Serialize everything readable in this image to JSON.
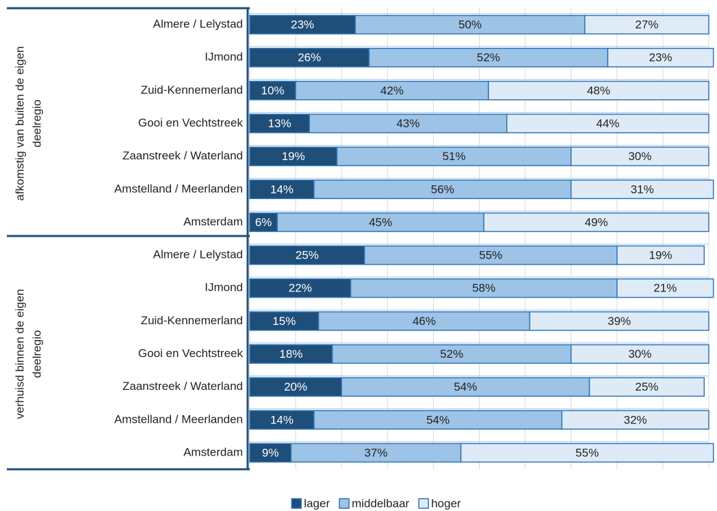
{
  "chart_data": {
    "type": "bar",
    "orientation": "horizontal",
    "stacked": true,
    "groups": [
      {
        "label": [
          "afkomstig  van buiten de eigen",
          "deelregio"
        ],
        "categories": [
          "Almere / Lelystad",
          "IJmond",
          "Zuid-Kennemerland",
          "Gooi en Vechtstreek",
          "Zaanstreek / Waterland",
          "Amstelland / Meerlanden",
          "Amsterdam"
        ]
      },
      {
        "label": [
          "verhuisd binnen de eigen",
          "deelregio"
        ],
        "categories": [
          "Almere / Lelystad",
          "IJmond",
          "Zuid-Kennemerland",
          "Gooi en Vechtstreek",
          "Zaanstreek / Waterland",
          "Amstelland / Meerlanden",
          "Amsterdam"
        ]
      }
    ],
    "series": [
      {
        "name": "lager",
        "color": "#1f4e79",
        "label_color": "#ffffff",
        "values": [
          23,
          26,
          10,
          13,
          19,
          14,
          6,
          25,
          22,
          15,
          18,
          20,
          14,
          9
        ],
        "value_labels": [
          "23%",
          "26%",
          "10%",
          "13%",
          "19%",
          "14%",
          "6%",
          "25%",
          "22%",
          "15%",
          "18%",
          "20%",
          "14%",
          "9%"
        ]
      },
      {
        "name": "middelbaar",
        "color": "#9dc3e6",
        "label_color": "#222222",
        "values": [
          50,
          52,
          42,
          43,
          51,
          56,
          45,
          55,
          58,
          46,
          52,
          54,
          54,
          37
        ],
        "value_labels": [
          "50%",
          "52%",
          "42%",
          "43%",
          "51%",
          "56%",
          "45%",
          "55%",
          "58%",
          "46%",
          "52%",
          "54%",
          "54%",
          "37%"
        ]
      },
      {
        "name": "hoger",
        "color": "#deebf7",
        "label_color": "#222222",
        "values": [
          27,
          23,
          48,
          44,
          30,
          31,
          49,
          19,
          21,
          39,
          30,
          25,
          32,
          55
        ],
        "value_labels": [
          "27%",
          "23%",
          "48%",
          "44%",
          "30%",
          "31%",
          "49%",
          "19%",
          "21%",
          "39%",
          "30%",
          "25%",
          "32%",
          "55%"
        ]
      }
    ],
    "xlim": [
      0,
      100
    ],
    "xticks": [
      0,
      10,
      20,
      30,
      40,
      50,
      60,
      70,
      80,
      90,
      100
    ],
    "grid": true,
    "legend": "bottom"
  }
}
